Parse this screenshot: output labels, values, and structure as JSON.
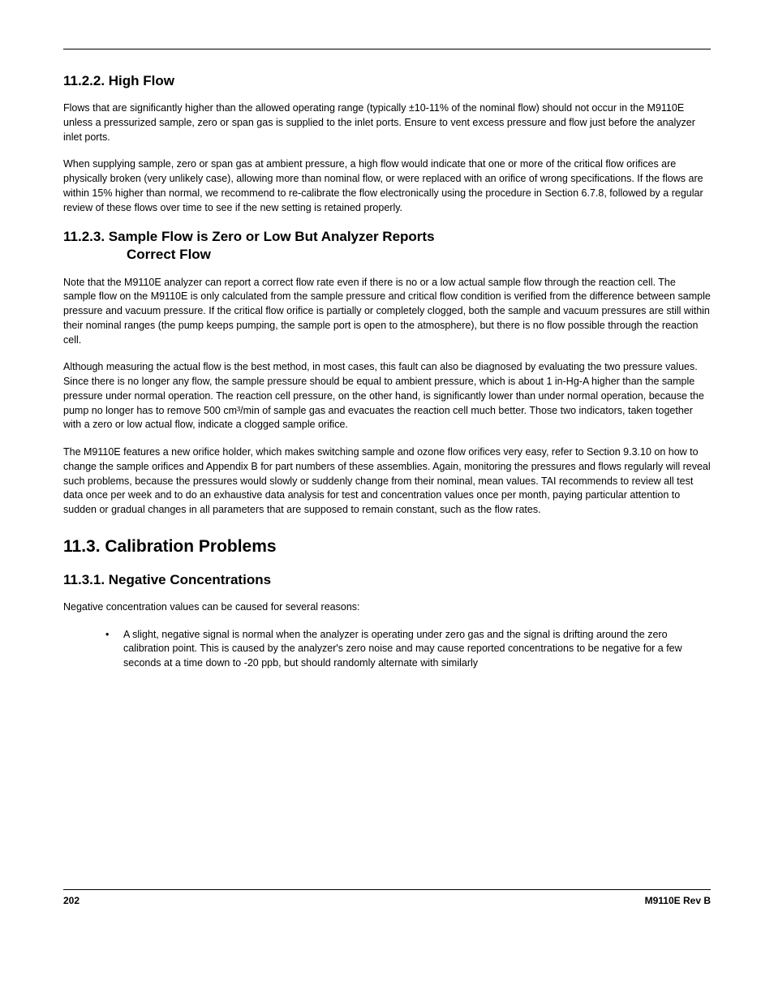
{
  "typography": {
    "body_font_family": "Verdana, Geneva, sans-serif",
    "body_font_size_pt": 9.4,
    "subsection_heading_size_pt": 13,
    "section_heading_size_pt": 16,
    "text_color": "#000000",
    "background_color": "#ffffff",
    "rule_color": "#000000"
  },
  "sections": {
    "s11_2_2": {
      "heading": "11.2.2. High Flow",
      "p1": "Flows that are significantly higher than the allowed operating range (typically ±10-11% of the nominal flow) should not occur in the M9110E unless a pressurized sample, zero or span gas is supplied to the inlet ports. Ensure to vent excess pressure and flow just before the analyzer inlet ports.",
      "p2": "When supplying sample, zero or span gas at ambient pressure, a high flow would indicate that one or more of the critical flow orifices are physically broken (very unlikely case), allowing more than nominal flow, or were replaced with an orifice of wrong specifications. If the flows are within 15% higher than normal, we recommend to re-calibrate the flow electronically using the procedure in Section 6.7.8, followed by a regular review of these flows over time to see if the new setting is retained properly."
    },
    "s11_2_3": {
      "heading_line1": "11.2.3. Sample Flow is Zero or Low But Analyzer Reports",
      "heading_line2": "Correct Flow",
      "p1": "Note that the M9110E analyzer can report a correct flow rate even if there is no or a low actual sample flow through the reaction cell. The sample flow on the M9110E is only calculated from the sample pressure and critical flow condition is verified from the difference between sample pressure and vacuum pressure. If the critical flow orifice is partially or completely clogged, both the sample and vacuum pressures are still within their nominal ranges (the pump keeps pumping, the sample port is open to the atmosphere), but there is no flow possible through the reaction cell.",
      "p2": "Although measuring the actual flow is the best method, in most cases, this fault can also be diagnosed by evaluating the two pressure values. Since there is no longer any flow, the sample pressure should be equal to ambient pressure, which is about 1 in-Hg-A higher than the sample pressure under normal operation. The reaction cell pressure, on the other hand, is significantly lower than under normal operation, because the pump no longer has to remove 500 cm³/min of sample gas and evacuates the reaction cell much better. Those two indicators, taken together with a zero or low actual flow, indicate a clogged sample orifice.",
      "p3": "The M9110E features a new orifice holder, which makes switching sample and ozone flow orifices very easy, refer to Section 9.3.10 on how to change the sample orifices and Appendix B for part numbers of these assemblies. Again, monitoring the pressures and flows regularly will reveal such problems, because the pressures would slowly or suddenly change from their nominal, mean values. TAI recommends to review all test data once per week and to do an exhaustive data analysis for test and concentration values once per month, paying particular attention to sudden or gradual changes in all parameters that are supposed to remain constant, such as the flow rates."
    },
    "s11_3": {
      "heading": "11.3. Calibration Problems"
    },
    "s11_3_1": {
      "heading": "11.3.1. Negative Concentrations",
      "p1": "Negative concentration values can be caused for several reasons:",
      "bullet1": "A slight, negative signal is normal when the analyzer is operating under zero gas and the signal is drifting around the zero calibration point. This is caused by the analyzer's zero noise and may cause reported concentrations to be negative for a few seconds at a time down to -20 ppb, but should randomly alternate with similarly"
    }
  },
  "footer": {
    "page_number": "202",
    "doc_id": "M9110E Rev B"
  }
}
